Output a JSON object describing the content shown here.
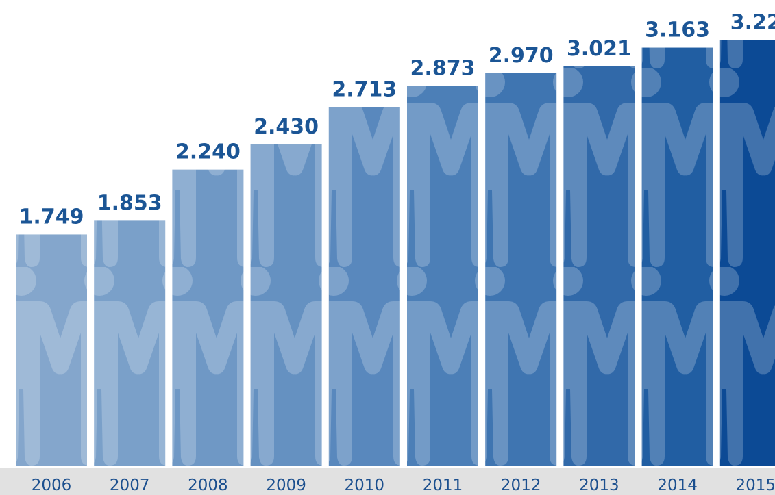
{
  "chart_data": {
    "type": "bar",
    "categories": [
      "2006",
      "2007",
      "2008",
      "2009",
      "2010",
      "2011",
      "2012",
      "2013",
      "2014",
      "2015"
    ],
    "values": [
      1.749,
      1.853,
      2.24,
      2.43,
      2.713,
      2.873,
      2.97,
      3.021,
      3.163,
      3.22
    ],
    "value_labels": [
      "1.749",
      "1.853",
      "2.240",
      "2.430",
      "2.713",
      "2.873",
      "2.970",
      "3.021",
      "3.163",
      "3.22"
    ],
    "colors": [
      "#84a6cc",
      "#7aa0c9",
      "#6f98c5",
      "#6591c1",
      "#5988bd",
      "#4c7fb7",
      "#3f75b1",
      "#3169a9",
      "#215ea2",
      "#0c4a95"
    ]
  }
}
